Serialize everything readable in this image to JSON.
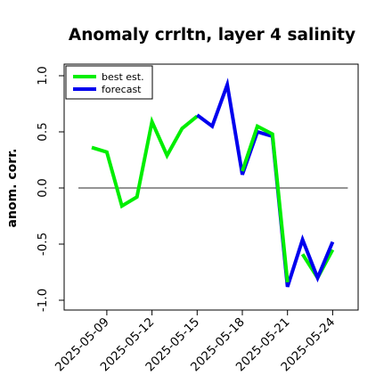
{
  "chart_data": {
    "type": "line",
    "title": "Anomaly crrltn, layer 4 salinity",
    "ylabel": "anom. corr.",
    "ylim": [
      -1.0,
      1.0
    ],
    "yticks": [
      "-1.0",
      "-0.5",
      "0.0",
      "0.5",
      "1.0"
    ],
    "x": [
      "2025-05-08",
      "2025-05-09",
      "2025-05-10",
      "2025-05-11",
      "2025-05-12",
      "2025-05-13",
      "2025-05-14",
      "2025-05-15",
      "2025-05-16",
      "2025-05-17",
      "2025-05-18",
      "2025-05-19",
      "2025-05-20",
      "2025-05-21",
      "2025-05-22",
      "2025-05-23",
      "2025-05-24"
    ],
    "xticks": [
      {
        "label": "2025-05-09",
        "color": "#000000"
      },
      {
        "label": "2025-05-12",
        "color": "#000000"
      },
      {
        "label": "2025-05-15",
        "color": "#2e8b2e"
      },
      {
        "label": "2025-05-18",
        "color": "#000000"
      },
      {
        "label": "2025-05-21",
        "color": "#000000"
      },
      {
        "label": "2025-05-24",
        "color": "#000000"
      }
    ],
    "reference_line": 0.0,
    "legend_position": "top-left",
    "series": [
      {
        "name": "best est.",
        "color": "#00ee00",
        "values": [
          0.36,
          0.32,
          -0.16,
          -0.08,
          0.59,
          0.29,
          0.53,
          0.64,
          null,
          null,
          null,
          null,
          null,
          null,
          -0.59,
          -0.8,
          -0.55
        ]
      },
      {
        "name": "forecast",
        "color": "#0000ee",
        "values": [
          null,
          null,
          null,
          null,
          null,
          null,
          null,
          0.65,
          0.55,
          0.92,
          0.12,
          0.5,
          0.46,
          -0.88,
          -0.46,
          -0.8,
          -0.48
        ]
      },
      {
        "name": "best est.",
        "color": "#00ee00",
        "values": [
          null,
          null,
          null,
          null,
          null,
          null,
          null,
          null,
          null,
          null,
          0.15,
          0.55,
          0.48,
          -0.84,
          null,
          null,
          null
        ]
      }
    ]
  }
}
